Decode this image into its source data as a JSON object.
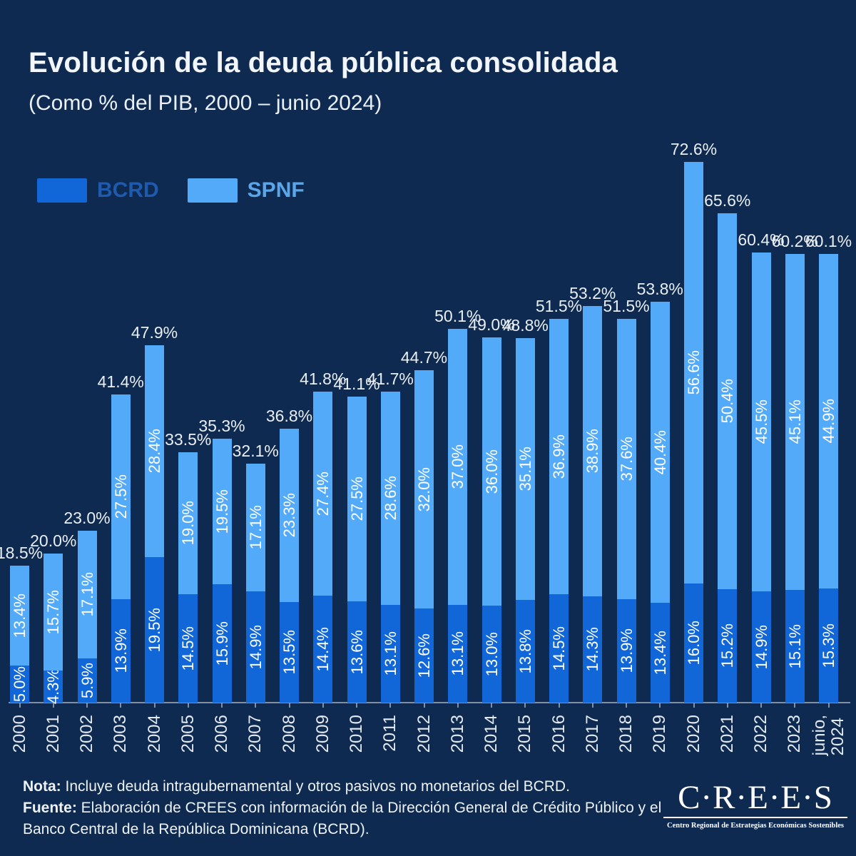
{
  "header": {
    "title": "Evolución de la deuda pública consolidada",
    "subtitle": "(Como % del PIB, 2000 – junio 2024)"
  },
  "legend": {
    "bcrd_label": "BCRD",
    "spnf_label": "SPNF"
  },
  "colors": {
    "background": "#0E2A50",
    "bcrd_bar": "#1166D8",
    "spnf_bar": "#53AAF9",
    "bcrd_legend_text": "#1E5AAE",
    "spnf_legend_text": "#5BA6E8",
    "axis": "#93A2B1",
    "total_label_text": "#E9EEF3",
    "inner_label_text": "#FFFFFF"
  },
  "chart_data": {
    "type": "bar",
    "stacked": true,
    "title": "Evolución de la deuda pública consolidada",
    "subtitle": "(Como % del PIB, 2000 – junio 2024)",
    "unit": "% del PIB",
    "ylim": [
      0,
      76
    ],
    "grid": false,
    "legend_position": "top-left",
    "categories": [
      "2000",
      "2001",
      "2002",
      "2003",
      "2004",
      "2005",
      "2006",
      "2007",
      "2008",
      "2009",
      "2010",
      "2011",
      "2012",
      "2013",
      "2014",
      "2015",
      "2016",
      "2017",
      "2018",
      "2019",
      "2020",
      "2021",
      "2022",
      "2023",
      "junio,\n2024"
    ],
    "series": [
      {
        "name": "BCRD",
        "color": "#1166D8",
        "values": [
          5.0,
          4.3,
          5.9,
          13.9,
          19.5,
          14.5,
          15.9,
          14.9,
          13.5,
          14.4,
          13.6,
          13.1,
          12.6,
          13.1,
          13.0,
          13.8,
          14.5,
          14.3,
          13.9,
          13.4,
          16.0,
          15.2,
          14.9,
          15.1,
          15.3
        ],
        "labels": [
          "5.0%",
          "4.3%",
          "5.9%",
          "13.9%",
          "19.5%",
          "14.5%",
          "15.9%",
          "14.9%",
          "13.5%",
          "14.4%",
          "13.6%",
          "13.1%",
          "12.6%",
          "13.1%",
          "13.0%",
          "13.8%",
          "14.5%",
          "14.3%",
          "13.9%",
          "13.4%",
          "16.0%",
          "15.2%",
          "14.9%",
          "15.1%",
          "15.3%"
        ]
      },
      {
        "name": "SPNF",
        "color": "#53AAF9",
        "values": [
          13.4,
          15.7,
          17.1,
          27.5,
          28.4,
          19.0,
          19.5,
          17.1,
          23.3,
          27.4,
          27.5,
          28.6,
          32.0,
          37.0,
          36.0,
          35.1,
          36.9,
          38.9,
          37.6,
          40.4,
          56.6,
          50.4,
          45.5,
          45.1,
          44.9
        ],
        "labels": [
          "13.4%",
          "15.7%",
          "17.1%",
          "27.5%",
          "28.4%",
          "19.0%",
          "19.5%",
          "17.1%",
          "23.3%",
          "27.4%",
          "27.5%",
          "28.6%",
          "32.0%",
          "37.0%",
          "36.0%",
          "35.1%",
          "36.9%",
          "38.9%",
          "37.6%",
          "40.4%",
          "56.6%",
          "50.4%",
          "45.5%",
          "45.1%",
          "44.9%"
        ]
      }
    ],
    "total_labels": [
      "18.5%",
      "20.0%",
      "23.0%",
      "41.4%",
      "47.9%",
      "33.5%",
      "35.3%",
      "32.1%",
      "36.8%",
      "41.8%",
      "41.1%",
      "41.7%",
      "44.7%",
      "50.1%",
      "49.0%",
      "48.8%",
      "51.5%",
      "53.2%",
      "51.5%",
      "53.8%",
      "72.6%",
      "65.6%",
      "60.4%",
      "60.2%",
      "60.1%"
    ]
  },
  "footer": {
    "nota_label": "Nota:",
    "nota_text": "Incluye deuda intragubernamental y otros pasivos no monetarios del BCRD.",
    "fuente_label": "Fuente:",
    "fuente_text_line1": "Elaboración de CREES con información de la Dirección General de Crédito Público y el",
    "fuente_text_line2": "Banco Central de la República Dominicana (BCRD)."
  },
  "logo": {
    "name": "C·R·E·E·S",
    "tagline": "Centro Regional de Estrategias Económicas Sostenibles"
  }
}
